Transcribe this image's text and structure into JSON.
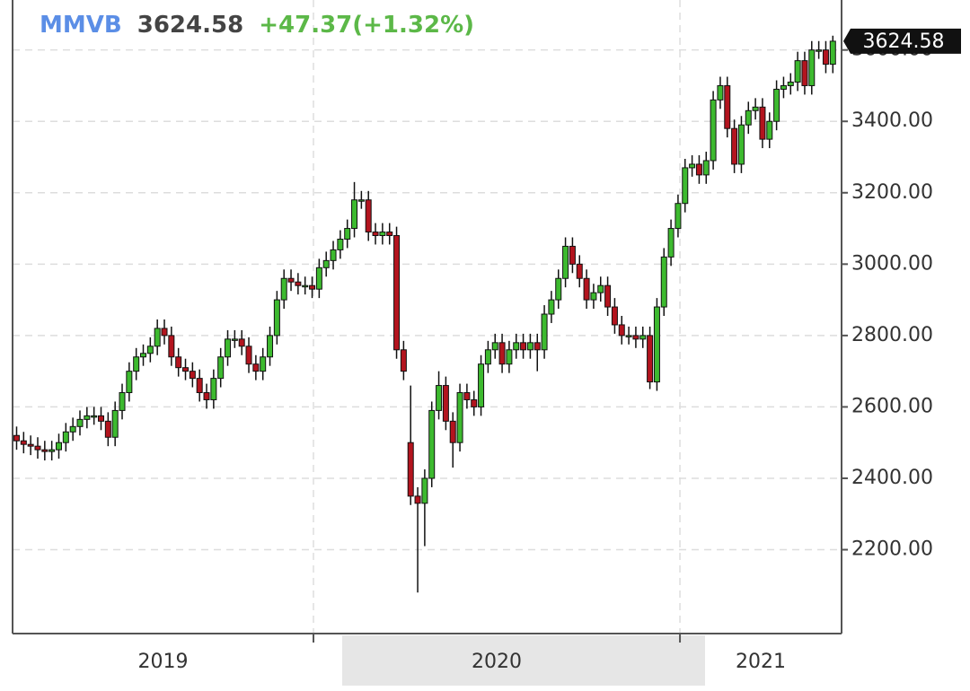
{
  "chart_data": {
    "type": "candlestick",
    "symbol": "MMVB",
    "last": 3624.58,
    "change": "+47.37(+1.32%)",
    "x": [
      2019.19,
      2019.2092,
      2019.2284,
      2019.2476,
      2019.2668,
      2019.286,
      2019.3052,
      2019.3244,
      2019.3436,
      2019.3628,
      2019.382,
      2019.4012,
      2019.4204,
      2019.4396,
      2019.4588,
      2019.478,
      2019.4972,
      2019.5164,
      2019.5356,
      2019.5548,
      2019.574,
      2019.5932,
      2019.6124,
      2019.6316,
      2019.6508,
      2019.67,
      2019.6892,
      2019.7084,
      2019.7276,
      2019.7468,
      2019.766,
      2019.7852,
      2019.8044,
      2019.8236,
      2019.8428,
      2019.862,
      2019.8812,
      2019.9004,
      2019.9196,
      2019.9388,
      2019.958,
      2019.9772,
      2019.9964,
      2020.0156,
      2020.0348,
      2020.054,
      2020.0732,
      2020.0924,
      2020.1116,
      2020.1308,
      2020.15,
      2020.1692,
      2020.1884,
      2020.2076,
      2020.2268,
      2020.246,
      2020.2652,
      2020.2844,
      2020.3036,
      2020.3228,
      2020.342,
      2020.3612,
      2020.3804,
      2020.3996,
      2020.4188,
      2020.438,
      2020.4572,
      2020.4764,
      2020.4956,
      2020.5148,
      2020.534,
      2020.5532,
      2020.5724,
      2020.5916,
      2020.6108,
      2020.63,
      2020.6492,
      2020.6684,
      2020.6876,
      2020.7068,
      2020.726,
      2020.7452,
      2020.7644,
      2020.7836,
      2020.8028,
      2020.822,
      2020.8412,
      2020.8604,
      2020.8796,
      2020.8988,
      2020.918,
      2020.9372,
      2020.9564,
      2020.9756,
      2020.9948,
      2021.014,
      2021.0332,
      2021.0524,
      2021.0716,
      2021.0908,
      2021.11,
      2021.1292,
      2021.1484,
      2021.1676,
      2021.1868,
      2021.206,
      2021.2252,
      2021.2444,
      2021.2636,
      2021.2828,
      2021.302,
      2021.3212,
      2021.3404,
      2021.3596,
      2021.3788,
      2021.398,
      2021.4172
    ],
    "open": [
      2520,
      2505,
      2495,
      2490,
      2480,
      2475,
      2480,
      2500,
      2530,
      2545,
      2565,
      2575,
      2575,
      2560,
      2515,
      2590,
      2640,
      2700,
      2740,
      2750,
      2770,
      2820,
      2800,
      2740,
      2710,
      2700,
      2680,
      2640,
      2620,
      2680,
      2740,
      2790,
      2790,
      2770,
      2720,
      2700,
      2740,
      2800,
      2900,
      2960,
      2950,
      2940,
      2940,
      2930,
      2990,
      3010,
      3040,
      3070,
      3100,
      3180,
      3180,
      3090,
      3080,
      3090,
      3080,
      2760,
      2500,
      2350,
      2330,
      2400,
      2590,
      2660,
      2560,
      2500,
      2640,
      2620,
      2600,
      2720,
      2760,
      2780,
      2720,
      2760,
      2780,
      2760,
      2780,
      2760,
      2860,
      2900,
      2960,
      3050,
      3000,
      2960,
      2900,
      2920,
      2940,
      2880,
      2830,
      2800,
      2800,
      2790,
      2800,
      2670,
      2880,
      3020,
      3100,
      3170,
      3270,
      3280,
      3250,
      3290,
      3460,
      3500,
      3380,
      3280,
      3390,
      3430,
      3440,
      3350,
      3400,
      3490,
      3500,
      3510,
      3570,
      3500,
      3600,
      3600,
      3560
    ],
    "high": [
      2545,
      2530,
      2520,
      2515,
      2505,
      2505,
      2525,
      2555,
      2570,
      2590,
      2600,
      2600,
      2600,
      2585,
      2615,
      2665,
      2725,
      2765,
      2775,
      2795,
      2845,
      2845,
      2825,
      2765,
      2735,
      2725,
      2705,
      2665,
      2705,
      2765,
      2815,
      2815,
      2815,
      2795,
      2745,
      2765,
      2825,
      2925,
      2985,
      2985,
      2975,
      2965,
      2965,
      3015,
      3035,
      3065,
      3095,
      3125,
      3230,
      3205,
      3205,
      3115,
      3115,
      3115,
      3105,
      2785,
      2660,
      2375,
      2425,
      2615,
      2700,
      2685,
      2585,
      2665,
      2665,
      2645,
      2745,
      2785,
      2805,
      2805,
      2785,
      2805,
      2805,
      2805,
      2805,
      2885,
      2925,
      2985,
      3075,
      3075,
      3025,
      2985,
      2945,
      2965,
      2965,
      2905,
      2855,
      2825,
      2825,
      2825,
      2825,
      2905,
      3045,
      3125,
      3195,
      3295,
      3305,
      3305,
      3315,
      3485,
      3525,
      3525,
      3405,
      3415,
      3455,
      3465,
      3465,
      3425,
      3515,
      3525,
      3535,
      3595,
      3595,
      3625,
      3625,
      3625,
      3640
    ],
    "low": [
      2480,
      2470,
      2465,
      2455,
      2450,
      2450,
      2455,
      2475,
      2505,
      2520,
      2540,
      2550,
      2535,
      2490,
      2490,
      2565,
      2615,
      2675,
      2715,
      2725,
      2745,
      2775,
      2715,
      2685,
      2675,
      2655,
      2615,
      2595,
      2595,
      2655,
      2715,
      2765,
      2745,
      2695,
      2675,
      2675,
      2715,
      2775,
      2875,
      2925,
      2915,
      2915,
      2905,
      2905,
      2965,
      2985,
      3015,
      3045,
      3075,
      3155,
      3065,
      3055,
      3055,
      3055,
      2735,
      2675,
      2325,
      2080,
      2210,
      2375,
      2565,
      2535,
      2430,
      2475,
      2595,
      2575,
      2575,
      2695,
      2735,
      2695,
      2695,
      2735,
      2735,
      2735,
      2700,
      2735,
      2835,
      2875,
      2935,
      2975,
      2935,
      2875,
      2875,
      2895,
      2855,
      2805,
      2775,
      2775,
      2765,
      2765,
      2650,
      2645,
      2855,
      2995,
      3075,
      3145,
      3245,
      3225,
      3225,
      3265,
      3435,
      3355,
      3255,
      3255,
      3365,
      3405,
      3325,
      3325,
      3375,
      3465,
      3475,
      3485,
      3475,
      3475,
      3575,
      3535,
      3535
    ],
    "close": [
      2505,
      2495,
      2490,
      2480,
      2475,
      2480,
      2500,
      2530,
      2545,
      2565,
      2575,
      2575,
      2560,
      2515,
      2590,
      2640,
      2700,
      2740,
      2750,
      2770,
      2820,
      2800,
      2740,
      2710,
      2700,
      2680,
      2640,
      2620,
      2680,
      2740,
      2790,
      2790,
      2770,
      2720,
      2700,
      2740,
      2800,
      2900,
      2960,
      2950,
      2940,
      2940,
      2930,
      2990,
      3010,
      3040,
      3070,
      3100,
      3180,
      3180,
      3090,
      3080,
      3090,
      3080,
      2760,
      2700,
      2350,
      2330,
      2400,
      2590,
      2660,
      2560,
      2500,
      2640,
      2620,
      2600,
      2720,
      2760,
      2780,
      2720,
      2760,
      2780,
      2760,
      2780,
      2760,
      2860,
      2900,
      2960,
      3050,
      3000,
      2960,
      2900,
      2920,
      2940,
      2880,
      2830,
      2800,
      2800,
      2790,
      2800,
      2670,
      2880,
      3020,
      3100,
      3170,
      3270,
      3280,
      3250,
      3290,
      3460,
      3500,
      3380,
      3280,
      3390,
      3430,
      3440,
      3350,
      3400,
      3490,
      3500,
      3510,
      3570,
      3500,
      3600,
      3600,
      3560,
      3624.58
    ],
    "up_color": "#3dba2f",
    "down_color": "#b3141e",
    "xlim": [
      2019.179,
      2021.441
    ],
    "xticks": [
      {
        "value": 2019,
        "label": "2019"
      },
      {
        "value": 2020,
        "label": "2020"
      },
      {
        "value": 2021,
        "label": "2021"
      }
    ],
    "ylim": [
      1965,
      3740
    ],
    "yticks": [
      {
        "value": 2200,
        "label": "2200.00"
      },
      {
        "value": 2400,
        "label": "2400.00"
      },
      {
        "value": 2600,
        "label": "2600.00"
      },
      {
        "value": 2800,
        "label": "2800.00"
      },
      {
        "value": 3000,
        "label": "3000.00"
      },
      {
        "value": 3200,
        "label": "3200.00"
      },
      {
        "value": 3400,
        "label": "3400.00"
      },
      {
        "value": 3600,
        "label": "3600.00"
      }
    ],
    "grid": true
  }
}
